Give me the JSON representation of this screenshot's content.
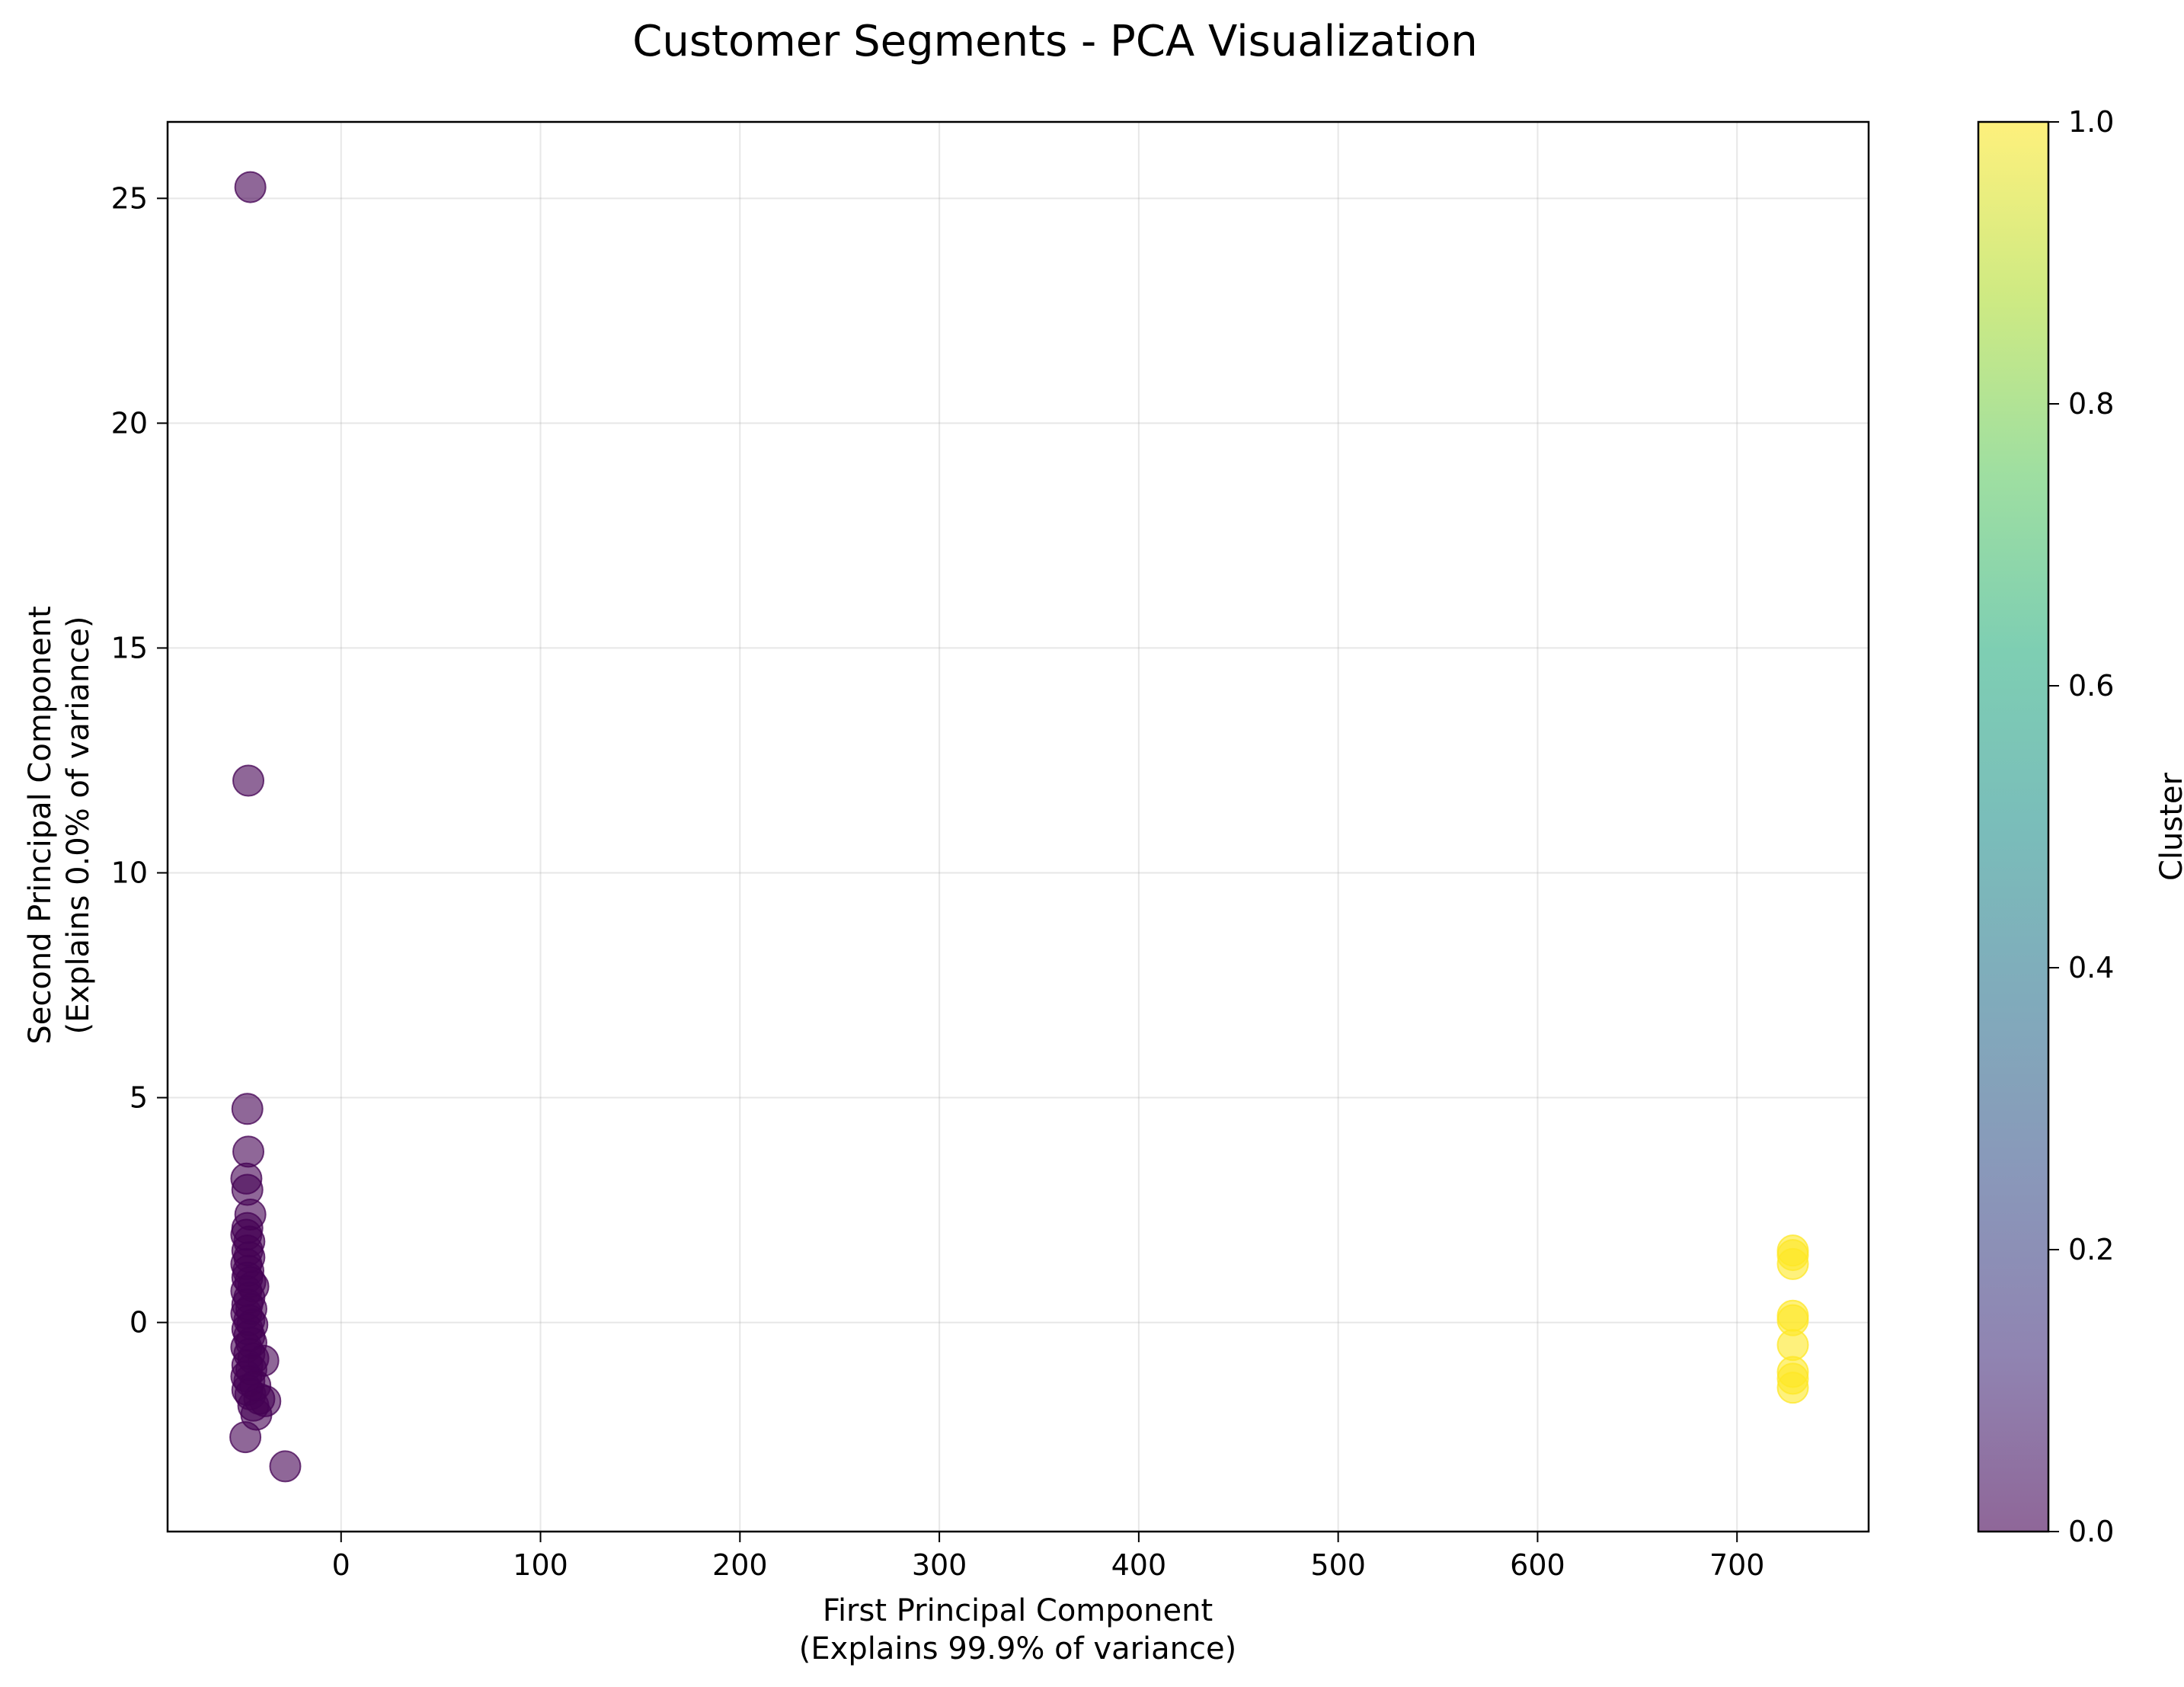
{
  "chart_data": {
    "type": "scatter",
    "title": "Customer Segments - PCA Visualization",
    "xlabel_lines": [
      "First Principal Component",
      "(Explains 99.9% of variance)"
    ],
    "ylabel_lines": [
      "Second Principal Component",
      "(Explains 0.0% of variance)"
    ],
    "xlim": [
      -87,
      766
    ],
    "ylim": [
      -4.65,
      26.7
    ],
    "xticks": [
      0,
      100,
      200,
      300,
      400,
      500,
      600,
      700
    ],
    "yticks": [
      0,
      5,
      10,
      15,
      20,
      25
    ],
    "grid": true,
    "colorbar": {
      "label": "Cluster",
      "range": [
        0,
        1
      ],
      "ticks": [
        "0.0",
        "0.2",
        "0.4",
        "0.6",
        "0.8",
        "1.0"
      ],
      "colormap": "viridis",
      "alpha": 0.6
    },
    "series": [
      {
        "cluster": 0,
        "color": "#440154",
        "points": [
          [
            -45.5,
            25.25
          ],
          [
            -46.5,
            12.05
          ],
          [
            -47,
            4.75
          ],
          [
            -46.5,
            3.8
          ],
          [
            -47.5,
            3.2
          ],
          [
            -47,
            2.95
          ],
          [
            -45.5,
            2.4
          ],
          [
            -47,
            2.1
          ],
          [
            -47.5,
            1.95
          ],
          [
            -46,
            1.8
          ],
          [
            -47,
            1.6
          ],
          [
            -46,
            1.45
          ],
          [
            -47.5,
            1.3
          ],
          [
            -46.5,
            1.15
          ],
          [
            -47,
            1.0
          ],
          [
            -45.5,
            0.9
          ],
          [
            -44,
            0.8
          ],
          [
            -47.5,
            0.7
          ],
          [
            -46,
            0.55
          ],
          [
            -47,
            0.4
          ],
          [
            -45,
            0.3
          ],
          [
            -47.5,
            0.2
          ],
          [
            -46,
            0.05
          ],
          [
            -44.5,
            -0.05
          ],
          [
            -47,
            -0.15
          ],
          [
            -46,
            -0.3
          ],
          [
            -45,
            -0.45
          ],
          [
            -47.5,
            -0.55
          ],
          [
            -46,
            -0.7
          ],
          [
            -44,
            -0.8
          ],
          [
            -39,
            -0.85
          ],
          [
            -47,
            -0.95
          ],
          [
            -45,
            -1.05
          ],
          [
            -47.5,
            -1.2
          ],
          [
            -46,
            -1.3
          ],
          [
            -43,
            -1.4
          ],
          [
            -47,
            -1.5
          ],
          [
            -45.5,
            -1.6
          ],
          [
            -41,
            -1.7
          ],
          [
            -38,
            -1.75
          ],
          [
            -44,
            -1.85
          ],
          [
            -42.5,
            -2.05
          ],
          [
            -48,
            -2.55
          ],
          [
            -28,
            -3.2
          ]
        ]
      },
      {
        "cluster": 1,
        "color": "#fde725",
        "points": [
          [
            728,
            1.6
          ],
          [
            728,
            1.5
          ],
          [
            728,
            1.3
          ],
          [
            728,
            0.15
          ],
          [
            728,
            0.05
          ],
          [
            728,
            -0.5
          ],
          [
            728,
            -1.1
          ],
          [
            728,
            -1.25
          ],
          [
            728,
            -1.45
          ]
        ]
      }
    ]
  }
}
